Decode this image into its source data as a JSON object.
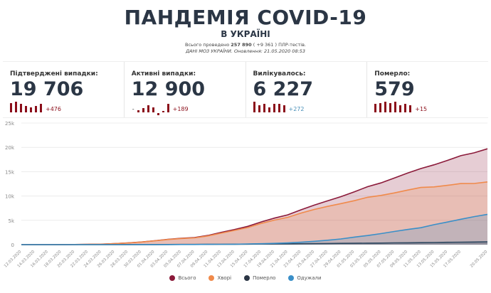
{
  "header": {
    "title": "ПАНДЕМІЯ COVID-19",
    "subtitle": "В УКРАЇНІ",
    "tests_prefix": "Всього проведено",
    "tests_count": "257 890",
    "tests_delta": "( +9 361 )",
    "tests_suffix": "ПЛР-тестів.",
    "source": "ДАНІ МОЗ УКРАЇНИ. Оновлення: 21.05.2020 08:53"
  },
  "cards": [
    {
      "label": "Підтверджені випадки:",
      "value": "19 706",
      "delta": "+476",
      "delta_color": "#8b0e1a",
      "spark": [
        9,
        10,
        8,
        6,
        5,
        6,
        8
      ]
    },
    {
      "label": "Активні випадки:",
      "value": "12 900",
      "delta": "+189",
      "delta_color": "#8b0e1a",
      "prefix": "-",
      "spark": [
        2,
        4,
        7,
        5,
        -2,
        0,
        8
      ]
    },
    {
      "label": "Вилікувалось:",
      "value": "6 227",
      "delta": "+272",
      "delta_color": "#4a90b8",
      "spark": [
        10,
        7,
        8,
        5,
        8,
        8,
        7
      ]
    },
    {
      "label": "Померло:",
      "value": "579",
      "delta": "+15",
      "delta_color": "#8b0e1a",
      "spark": [
        8,
        9,
        10,
        9,
        10,
        7,
        8,
        7
      ]
    }
  ],
  "chart_data": {
    "type": "area",
    "ylim": [
      0,
      25000
    ],
    "yticks": [
      "0",
      "5k",
      "10k",
      "15k",
      "20k",
      "25k"
    ],
    "grid": true,
    "legend_placement": "bottom",
    "x": [
      "12.03.2020",
      "14.03.2020",
      "16.03.2020",
      "18.03.2020",
      "20.03.2020",
      "22.03.2020",
      "24.03.2020",
      "26.03.2020",
      "28.03.2020",
      "30.03.2020",
      "01.04.2020",
      "03.04.2020",
      "05.04.2020",
      "07.04.2020",
      "09.04.2020",
      "11.04.2020",
      "13.04.2020",
      "15.04.2020",
      "17.04.2020",
      "19.04.2020",
      "21.04.2020",
      "23.04.2020",
      "25.04.2020",
      "27.04.2020",
      "29.04.2020",
      "01.05.2020",
      "03.05.2020",
      "05.05.2020",
      "07.05.2020",
      "09.05.2020",
      "11.05.2020",
      "13.05.2020",
      "15.05.2020",
      "17.05.2020",
      "19.05.2020",
      "20.05.2020"
    ],
    "series": [
      {
        "name": "Всього",
        "color": "#8b1a3a",
        "values": [
          1,
          3,
          7,
          16,
          29,
          73,
          97,
          218,
          356,
          548,
          804,
          1096,
          1319,
          1462,
          1892,
          2511,
          3102,
          3764,
          4662,
          5449,
          6125,
          7170,
          8125,
          9009,
          9866,
          10861,
          11913,
          12697,
          13691,
          14710,
          15648,
          16425,
          17330,
          18291,
          18876,
          19706
        ]
      },
      {
        "name": "Хворі",
        "color": "#f08a4b",
        "values": [
          1,
          3,
          6,
          14,
          26,
          69,
          92,
          209,
          341,
          527,
          768,
          1048,
          1253,
          1382,
          1779,
          2359,
          2917,
          3506,
          4351,
          5037,
          5617,
          6487,
          7235,
          7868,
          8439,
          9034,
          9730,
          10116,
          10624,
          11219,
          11756,
          11871,
          12191,
          12559,
          12574,
          12900
        ]
      },
      {
        "name": "Померло",
        "color": "#2b3645",
        "values": [
          0,
          0,
          1,
          1,
          2,
          3,
          4,
          5,
          9,
          13,
          20,
          28,
          38,
          45,
          52,
          73,
          93,
          108,
          125,
          151,
          161,
          187,
          209,
          239,
          261,
          279,
          308,
          316,
          361,
          376,
          408,
          439,
          484,
          514,
          548,
          579
        ]
      },
      {
        "name": "Одужали",
        "color": "#3a8fc8",
        "values": [
          0,
          0,
          0,
          1,
          1,
          1,
          1,
          4,
          6,
          8,
          16,
          20,
          28,
          35,
          61,
          79,
          92,
          150,
          186,
          261,
          347,
          496,
          681,
          902,
          1166,
          1548,
          1875,
          2265,
          2706,
          3115,
          3484,
          4115,
          4655,
          5218,
          5754,
          6227
        ]
      }
    ]
  }
}
